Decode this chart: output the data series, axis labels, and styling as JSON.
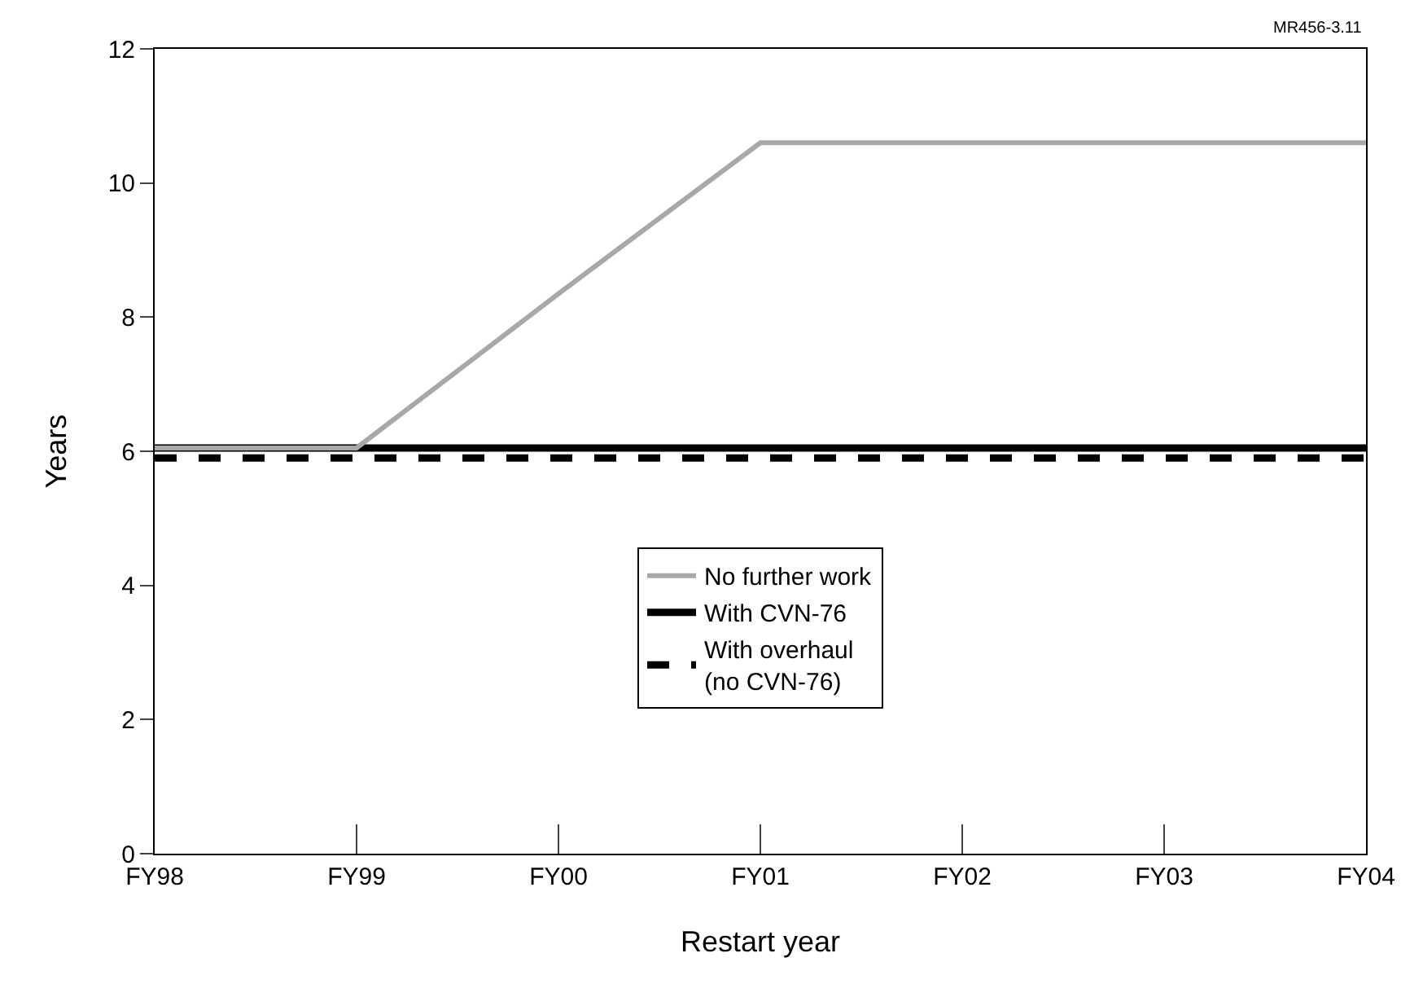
{
  "chart_data": {
    "type": "line",
    "xlabel": "Restart year",
    "ylabel": "Years",
    "categories": [
      "FY98",
      "FY99",
      "FY00",
      "FY01",
      "FY02",
      "FY03",
      "FY04"
    ],
    "series": [
      {
        "name": "No further work",
        "color": "#a8a8a8",
        "values": [
          6.05,
          6.05,
          8.35,
          10.6,
          10.6,
          10.6,
          10.6
        ]
      },
      {
        "name": "With CVN-76",
        "color": "#000000",
        "values": [
          6.05,
          6.05,
          6.05,
          6.05,
          6.05,
          6.05,
          6.05
        ]
      },
      {
        "name": "With overhaul\n(no CVN-76)",
        "color": "#000000",
        "line_style": "dashed",
        "values": [
          5.9,
          5.9,
          5.9,
          5.9,
          5.9,
          5.9,
          5.9
        ]
      }
    ],
    "ylim": [
      0,
      12
    ],
    "yticks": [
      0,
      2,
      4,
      6,
      8,
      10,
      12
    ],
    "legend": "bottom",
    "annotations": [
      "MR456-3.11"
    ]
  }
}
